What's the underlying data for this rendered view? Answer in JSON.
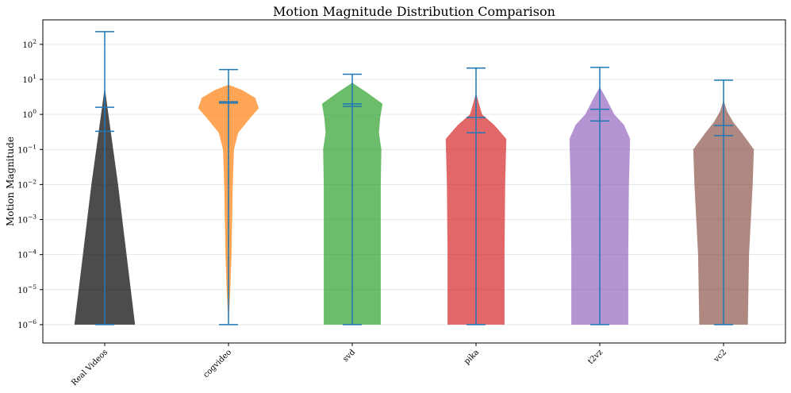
{
  "chart_data": {
    "type": "violin",
    "title": "Motion Magnitude Distribution Comparison",
    "xlabel": "",
    "ylabel": "Motion Magnitude",
    "yscale": "log",
    "ylim": [
      3e-07,
      500
    ],
    "grid": true,
    "yticks": [
      {
        "value": 1e-06,
        "base": "10",
        "exp": "−6"
      },
      {
        "value": 1e-05,
        "base": "10",
        "exp": "−5"
      },
      {
        "value": 0.0001,
        "base": "10",
        "exp": "−4"
      },
      {
        "value": 0.001,
        "base": "10",
        "exp": "−3"
      },
      {
        "value": 0.01,
        "base": "10",
        "exp": "−2"
      },
      {
        "value": 0.1,
        "base": "10",
        "exp": "−1"
      },
      {
        "value": 1,
        "base": "10",
        "exp": "0"
      },
      {
        "value": 10,
        "base": "10",
        "exp": "1"
      },
      {
        "value": 100,
        "base": "10",
        "exp": "2"
      }
    ],
    "categories": [
      "Real Videos",
      "cogvideo",
      "svd",
      "pika",
      "t2vz",
      "vc2"
    ],
    "series": [
      {
        "name": "Real Videos",
        "color": "#000000",
        "min": 1e-06,
        "max": 230,
        "mean": 1.6,
        "median": 0.33,
        "profile": [
          [
            1e-06,
            0.5
          ],
          [
            0.0001,
            0.36
          ],
          [
            0.01,
            0.22
          ],
          [
            0.1,
            0.14
          ],
          [
            1,
            0.06
          ],
          [
            6,
            0.0
          ]
        ]
      },
      {
        "name": "cogvideo",
        "color": "#ff7f0e",
        "min": 1e-06,
        "max": 19,
        "mean": 2.3,
        "median": 2.1,
        "profile": [
          [
            1e-06,
            0.0
          ],
          [
            1e-05,
            0.03
          ],
          [
            0.0001,
            0.05
          ],
          [
            0.001,
            0.06
          ],
          [
            0.01,
            0.07
          ],
          [
            0.1,
            0.09
          ],
          [
            0.3,
            0.16
          ],
          [
            0.8,
            0.36
          ],
          [
            1.5,
            0.5
          ],
          [
            3,
            0.44
          ],
          [
            5,
            0.22
          ],
          [
            7,
            0.0
          ]
        ]
      },
      {
        "name": "svd",
        "color": "#2ca02c",
        "min": 1e-06,
        "max": 14,
        "mean": 2.0,
        "median": 1.7,
        "profile": [
          [
            1e-06,
            0.47
          ],
          [
            0.0001,
            0.47
          ],
          [
            0.01,
            0.47
          ],
          [
            0.1,
            0.48
          ],
          [
            0.3,
            0.44
          ],
          [
            0.8,
            0.46
          ],
          [
            2,
            0.5
          ],
          [
            4,
            0.26
          ],
          [
            8,
            0.0
          ]
        ]
      },
      {
        "name": "pika",
        "color": "#d62728",
        "min": 1e-06,
        "max": 21,
        "mean": 0.82,
        "median": 0.3,
        "profile": [
          [
            1e-06,
            0.47
          ],
          [
            0.0001,
            0.47
          ],
          [
            0.01,
            0.48
          ],
          [
            0.2,
            0.5
          ],
          [
            0.5,
            0.3
          ],
          [
            1,
            0.1
          ],
          [
            4,
            0.0
          ]
        ]
      },
      {
        "name": "t2vz",
        "color": "#9467bd",
        "min": 1e-06,
        "max": 22,
        "mean": 1.4,
        "median": 0.65,
        "profile": [
          [
            1e-06,
            0.47
          ],
          [
            0.0001,
            0.47
          ],
          [
            0.01,
            0.48
          ],
          [
            0.2,
            0.5
          ],
          [
            0.5,
            0.4
          ],
          [
            1,
            0.24
          ],
          [
            3,
            0.1
          ],
          [
            6,
            0.0
          ]
        ]
      },
      {
        "name": "vc2",
        "color": "#8c564b",
        "min": 1e-06,
        "max": 9.5,
        "mean": 0.48,
        "median": 0.25,
        "profile": [
          [
            1e-06,
            0.4
          ],
          [
            0.0001,
            0.42
          ],
          [
            0.01,
            0.48
          ],
          [
            0.1,
            0.5
          ],
          [
            0.3,
            0.3
          ],
          [
            0.6,
            0.16
          ],
          [
            1.2,
            0.06
          ],
          [
            2.5,
            0.0
          ]
        ]
      }
    ]
  },
  "colors": {
    "stats_line": "#1f77b4",
    "grid": "#e6e6e6",
    "axis": "#000000"
  }
}
